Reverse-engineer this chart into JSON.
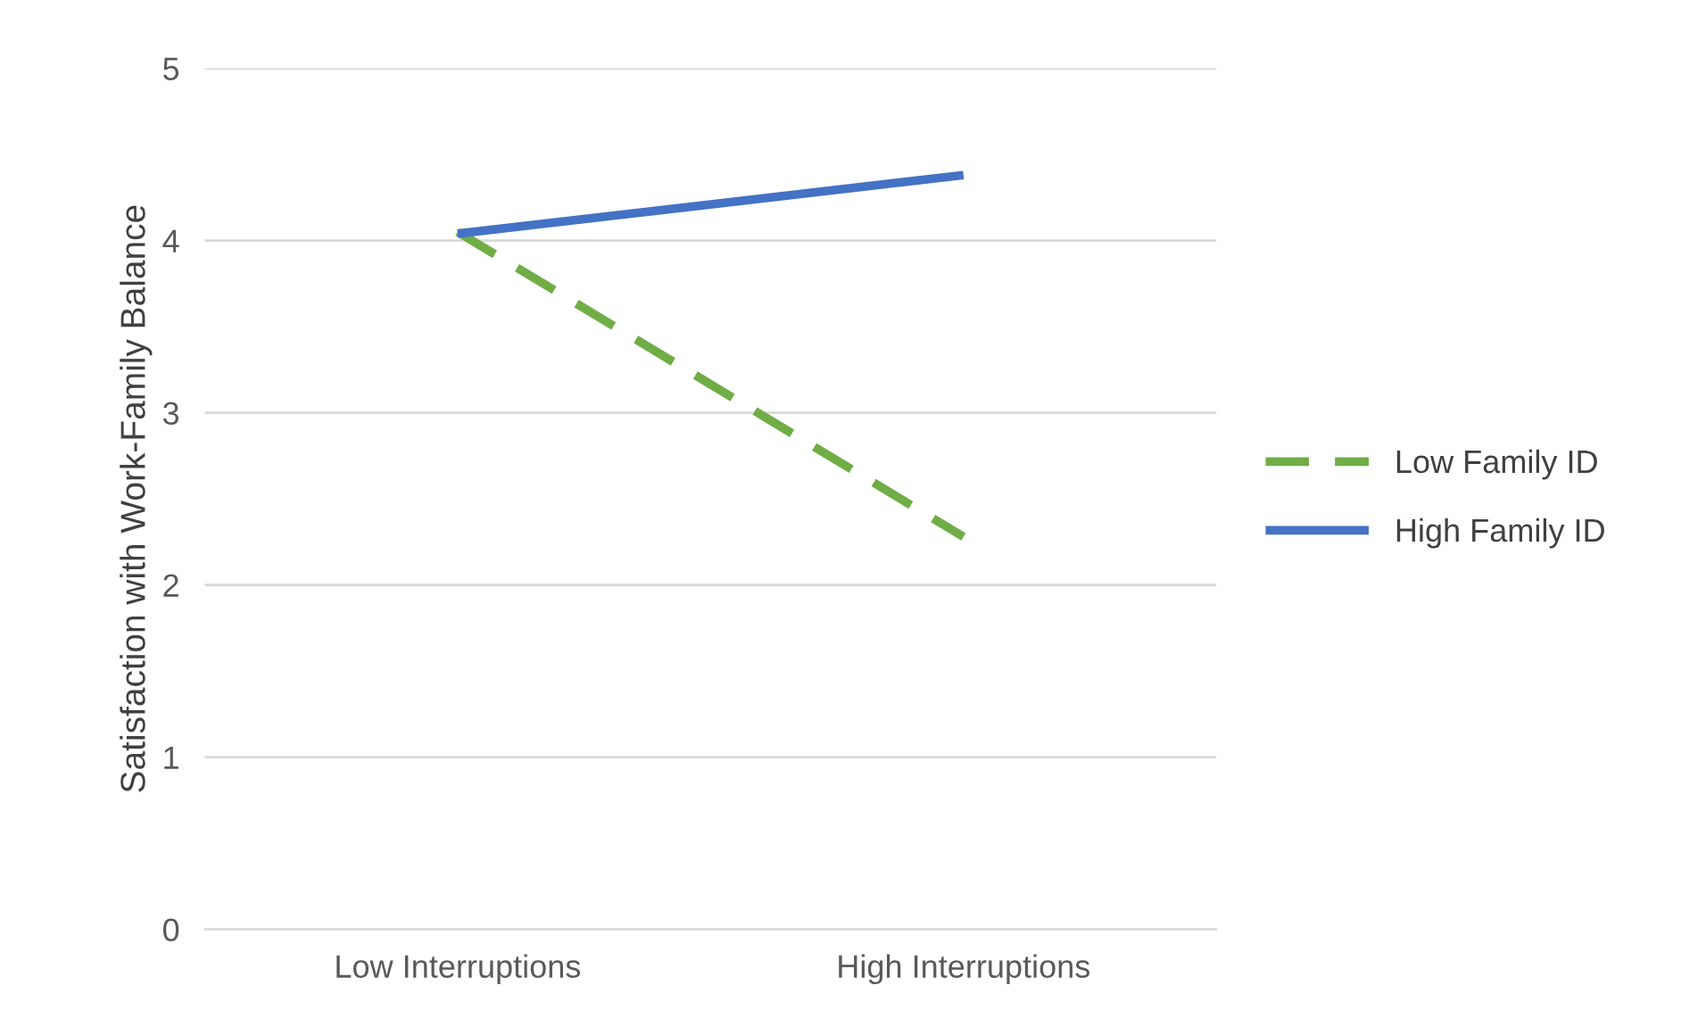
{
  "chart_data": {
    "type": "line",
    "ylabel": "Satisfaction with Work-Family Balance",
    "categories": [
      "Low Interruptions",
      "High Interruptions"
    ],
    "series": [
      {
        "name": "Low Family ID",
        "color": "#70ad47",
        "values": [
          4.05,
          2.28
        ],
        "line_style": "dashed"
      },
      {
        "name": "High Family ID",
        "color": "#4472c4",
        "values": [
          4.04,
          4.38
        ],
        "line_style": "solid"
      }
    ],
    "ylim": [
      0,
      5
    ],
    "yticks": [
      0,
      1,
      2,
      3,
      4,
      5
    ],
    "grid": "y",
    "legend": "right",
    "marker": "none"
  }
}
